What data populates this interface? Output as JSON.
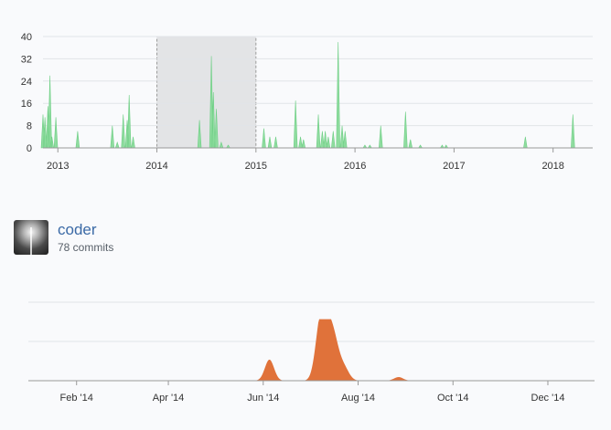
{
  "colors": {
    "overview_fill": "#8fdc9f",
    "overview_stroke": "#6fcf86",
    "detail_fill": "#e0723a",
    "selection": "#e3e4e6",
    "grid": "#e1e4e8",
    "axis": "#999999"
  },
  "overview": {
    "yticks": [
      "40",
      "32",
      "24",
      "16",
      "8",
      "0"
    ],
    "xticks": [
      "2013",
      "2014",
      "2015",
      "2016",
      "2017",
      "2018"
    ],
    "selection": {
      "from_year": 2014.0,
      "to_year": 2015.0
    }
  },
  "contributor": {
    "name": "coder",
    "commits": "78 commits",
    "avatar_icon": "user-avatar-image"
  },
  "detail": {
    "xticks": [
      "Feb '14",
      "Apr '14",
      "Jun '14",
      "Aug '14",
      "Oct '14",
      "Dec '14"
    ]
  },
  "chart_data": [
    {
      "type": "area",
      "title": "",
      "xlabel": "",
      "ylabel": "",
      "ylim": [
        0,
        40
      ],
      "xlim": [
        2012.85,
        2018.4
      ],
      "grid": true,
      "series": [
        {
          "name": "",
          "points": [
            [
              2012.85,
              12
            ],
            [
              2012.87,
              11
            ],
            [
              2012.9,
              15
            ],
            [
              2012.92,
              26
            ],
            [
              2012.94,
              4
            ],
            [
              2012.98,
              11
            ],
            [
              2013.2,
              6
            ],
            [
              2013.55,
              8
            ],
            [
              2013.6,
              2
            ],
            [
              2013.66,
              12
            ],
            [
              2013.7,
              10
            ],
            [
              2013.72,
              19
            ],
            [
              2013.76,
              4
            ],
            [
              2014.43,
              10
            ],
            [
              2014.55,
              33
            ],
            [
              2014.57,
              20
            ],
            [
              2014.6,
              14
            ],
            [
              2014.65,
              2
            ],
            [
              2014.72,
              1
            ],
            [
              2015.08,
              7
            ],
            [
              2015.14,
              4
            ],
            [
              2015.2,
              4
            ],
            [
              2015.4,
              17
            ],
            [
              2015.45,
              4
            ],
            [
              2015.48,
              3
            ],
            [
              2015.63,
              12
            ],
            [
              2015.67,
              6
            ],
            [
              2015.7,
              6
            ],
            [
              2015.73,
              4
            ],
            [
              2015.78,
              6
            ],
            [
              2015.83,
              38
            ],
            [
              2015.87,
              8
            ],
            [
              2015.9,
              6
            ],
            [
              2016.1,
              1
            ],
            [
              2016.15,
              1
            ],
            [
              2016.26,
              8
            ],
            [
              2016.51,
              13
            ],
            [
              2016.56,
              3
            ],
            [
              2016.66,
              1
            ],
            [
              2016.88,
              1
            ],
            [
              2016.92,
              1
            ],
            [
              2017.72,
              4
            ],
            [
              2018.2,
              12
            ]
          ]
        }
      ]
    },
    {
      "type": "area",
      "title": "",
      "xlabel": "",
      "ylabel": "",
      "ylim": [
        0,
        10
      ],
      "xlim": [
        "2014-01-01",
        "2014-12-31"
      ],
      "grid": true,
      "series": [
        {
          "name": "",
          "peaks": [
            [
              "2014-06-05",
              3.5
            ],
            [
              "2014-07-08",
              10.0
            ],
            [
              "2014-07-13",
              6.0
            ],
            [
              "2014-07-17",
              4.8
            ],
            [
              "2014-07-23",
              2.0
            ],
            [
              "2014-08-27",
              0.6
            ]
          ]
        }
      ]
    }
  ]
}
